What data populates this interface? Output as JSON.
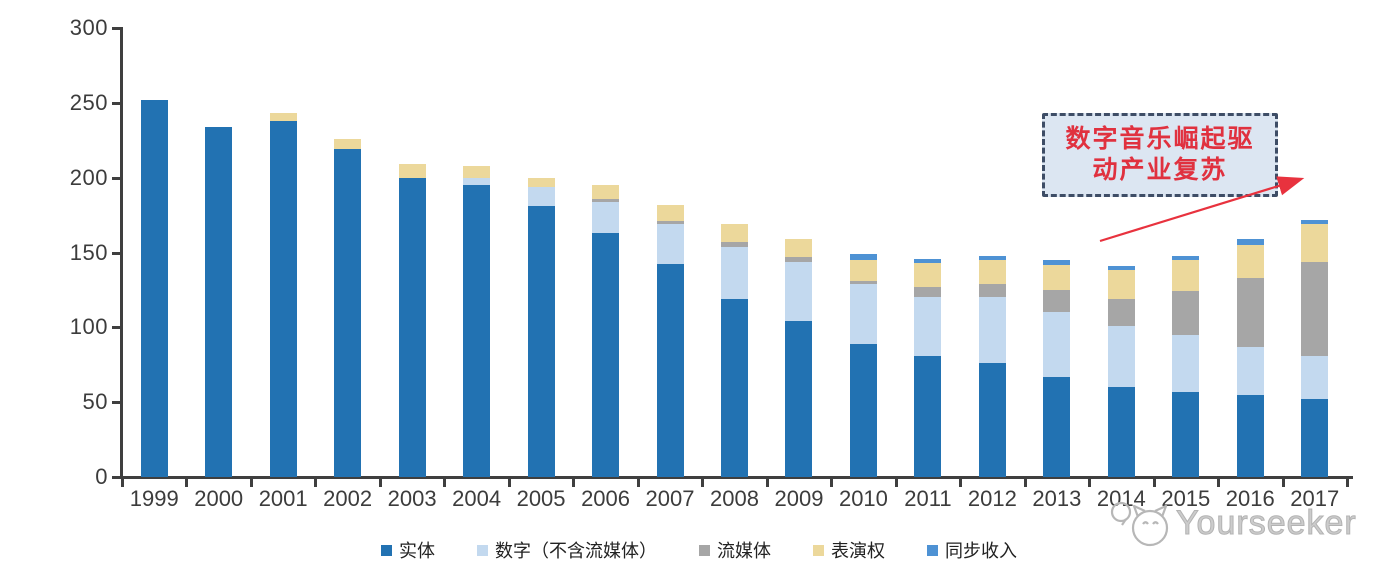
{
  "chart_data": {
    "type": "bar",
    "stacked": true,
    "title": "",
    "xlabel": "",
    "ylabel": "",
    "categories": [
      "1999",
      "2000",
      "2001",
      "2002",
      "2003",
      "2004",
      "2005",
      "2006",
      "2007",
      "2008",
      "2009",
      "2010",
      "2011",
      "2012",
      "2013",
      "2014",
      "2015",
      "2016",
      "2017"
    ],
    "series": [
      {
        "name": "实体",
        "color": "#2272b2",
        "values": [
          252,
          234,
          238,
          219,
          200,
          195,
          181,
          163,
          142,
          119,
          104,
          89,
          81,
          76,
          67,
          60,
          57,
          55,
          52
        ]
      },
      {
        "name": "数字（不含流媒体）",
        "color": "#c3d9ef",
        "values": [
          0,
          0,
          0,
          0,
          0,
          5,
          13,
          21,
          27,
          35,
          40,
          40,
          39,
          44,
          43,
          41,
          38,
          32,
          29
        ]
      },
      {
        "name": "流媒体",
        "color": "#a6a6a6",
        "values": [
          0,
          0,
          0,
          0,
          0,
          0,
          0,
          2,
          2,
          3,
          3,
          2,
          7,
          9,
          15,
          18,
          29,
          46,
          63
        ]
      },
      {
        "name": "表演权",
        "color": "#ecd89b",
        "values": [
          0,
          0,
          5,
          7,
          9,
          8,
          6,
          9,
          11,
          12,
          12,
          14,
          16,
          16,
          17,
          19,
          21,
          22,
          25
        ]
      },
      {
        "name": "同步收入",
        "color": "#4e92d4",
        "values": [
          0,
          0,
          0,
          0,
          0,
          0,
          0,
          0,
          0,
          0,
          0,
          4,
          3,
          3,
          3,
          3,
          3,
          4,
          3
        ]
      }
    ],
    "ylim": [
      0,
      300
    ],
    "yticks": [
      0,
      50,
      100,
      150,
      200,
      250,
      300
    ],
    "grid": false,
    "legend_position": "bottom"
  },
  "annotation": {
    "line1": "数字音乐崛起驱",
    "line2": "动产业复苏",
    "full_text": "数字音乐崛起驱动产业复苏",
    "text_color": "#e0313f",
    "box_fill": "#dce6f2",
    "box_border": "#3e4d66",
    "arrow_color": "#e8323e"
  },
  "watermark": {
    "text": "Yourseeker"
  }
}
